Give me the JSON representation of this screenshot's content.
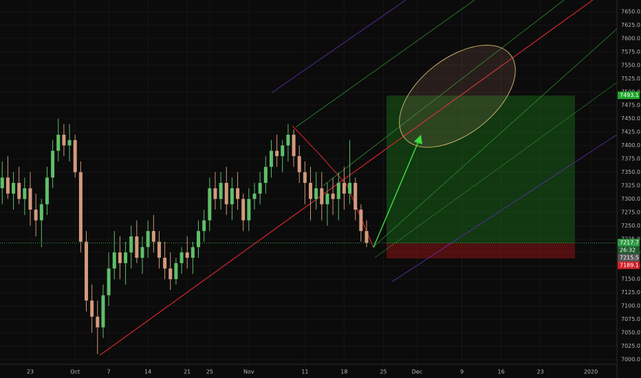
{
  "chart_data": {
    "type": "candlestick",
    "categories": [
      null,
      null,
      null,
      null,
      null,
      "23",
      null,
      null,
      null,
      null,
      null,
      null,
      null,
      "Oct",
      null,
      null,
      null,
      null,
      null,
      "7",
      null,
      null,
      null,
      null,
      null,
      null,
      "14",
      null,
      null,
      null,
      null,
      null,
      null,
      "21",
      null,
      null,
      null,
      "25",
      null,
      null,
      null,
      null,
      null,
      null,
      "Nov",
      null,
      null,
      null,
      null,
      null,
      null,
      null,
      null,
      null,
      "11",
      null,
      null,
      null,
      null,
      null,
      null,
      "18",
      null,
      null,
      null,
      null,
      null,
      null,
      "25",
      null,
      null,
      null,
      null,
      null,
      "Dec",
      null,
      null,
      null,
      null,
      null,
      null,
      null,
      "9",
      null,
      null,
      null,
      null,
      null,
      null,
      "16",
      null,
      null,
      null,
      null,
      null,
      null,
      "23",
      null,
      null,
      null,
      null,
      null,
      null,
      null,
      null,
      "2020"
    ],
    "open": [
      7320,
      7340,
      7310,
      7330,
      7300,
      7320,
      7280,
      7260,
      7290,
      7340,
      7390,
      7420,
      7400,
      7410,
      7350,
      7220,
      7110,
      7080,
      7060,
      7120,
      7170,
      7200,
      7180,
      7200,
      7230,
      7190,
      7210,
      7240,
      7220,
      7190,
      7170,
      7150,
      7180,
      7200,
      7190,
      7210,
      7240,
      7260,
      7320,
      7300,
      7330,
      7290,
      7320,
      7300,
      7260,
      7300,
      7310,
      7330,
      7360,
      7390,
      7380,
      7400,
      7420,
      7380,
      7350,
      7330,
      7300,
      7320,
      7290,
      7310,
      7300,
      7330,
      7310,
      7330,
      7280,
      7240,
      null,
      null,
      null,
      null,
      null,
      null,
      null,
      null,
      null,
      null,
      null,
      null,
      null,
      null,
      null,
      null,
      null,
      null,
      null,
      null,
      null,
      null,
      null,
      null,
      null,
      null,
      null,
      null,
      null,
      null,
      null,
      null,
      null,
      null,
      null,
      null,
      null,
      null,
      null,
      null
    ],
    "high": [
      7370,
      7380,
      7350,
      7360,
      7340,
      7350,
      7310,
      7300,
      7360,
      7410,
      7450,
      7440,
      7440,
      7420,
      7370,
      7240,
      7140,
      7110,
      7140,
      7200,
      7240,
      7230,
      7220,
      7250,
      7260,
      7230,
      7260,
      7270,
      7240,
      7220,
      7200,
      7190,
      7210,
      7230,
      7220,
      7260,
      7280,
      7340,
      7350,
      7350,
      7360,
      7340,
      7350,
      7310,
      7320,
      7330,
      7350,
      7380,
      7410,
      7420,
      7410,
      7440,
      7430,
      7400,
      7370,
      7360,
      7350,
      7350,
      7330,
      7340,
      7350,
      7360,
      7410,
      7340,
      7290,
      7260,
      null,
      null,
      null,
      null,
      null,
      null,
      null,
      null,
      null,
      null,
      null,
      null,
      null,
      null,
      null,
      null,
      null,
      null,
      null,
      null,
      null,
      null,
      null,
      null,
      null,
      null,
      null,
      null,
      null,
      null,
      null,
      null,
      null,
      null,
      null,
      null,
      null,
      null,
      null,
      null
    ],
    "low": [
      7290,
      7300,
      7280,
      7290,
      7270,
      7250,
      7230,
      7210,
      7270,
      7320,
      7370,
      7380,
      7370,
      7340,
      7200,
      7090,
      7050,
      7010,
      7040,
      7100,
      7150,
      7150,
      7140,
      7170,
      7180,
      7160,
      7190,
      7200,
      7170,
      7150,
      7130,
      7140,
      7160,
      7170,
      7160,
      7190,
      7220,
      7240,
      7280,
      7280,
      7270,
      7260,
      7280,
      7240,
      7240,
      7280,
      7290,
      7310,
      7340,
      7360,
      7350,
      7370,
      7360,
      7330,
      7290,
      7260,
      7280,
      7260,
      7250,
      7270,
      7260,
      7280,
      7290,
      7260,
      7220,
      7210,
      null,
      null,
      null,
      null,
      null,
      null,
      null,
      null,
      null,
      null,
      null,
      null,
      null,
      null,
      null,
      null,
      null,
      null,
      null,
      null,
      null,
      null,
      null,
      null,
      null,
      null,
      null,
      null,
      null,
      null,
      null,
      null,
      null,
      null,
      null,
      null,
      null,
      null,
      null,
      null
    ],
    "close": [
      7340,
      7310,
      7330,
      7300,
      7320,
      7280,
      7260,
      7290,
      7340,
      7390,
      7420,
      7400,
      7410,
      7350,
      7220,
      7110,
      7080,
      7060,
      7120,
      7170,
      7200,
      7180,
      7200,
      7230,
      7190,
      7210,
      7240,
      7220,
      7190,
      7170,
      7150,
      7180,
      7200,
      7190,
      7210,
      7240,
      7260,
      7320,
      7300,
      7330,
      7290,
      7320,
      7300,
      7260,
      7300,
      7310,
      7330,
      7360,
      7390,
      7380,
      7400,
      7420,
      7380,
      7350,
      7330,
      7300,
      7320,
      7290,
      7310,
      7300,
      7330,
      7310,
      7330,
      7280,
      7240,
      7218,
      null,
      null,
      null,
      null,
      null,
      null,
      null,
      null,
      null,
      null,
      null,
      null,
      null,
      null,
      null,
      null,
      null,
      null,
      null,
      null,
      null,
      null,
      null,
      null,
      null,
      null,
      null,
      null,
      null,
      null,
      null,
      null,
      null,
      null,
      null,
      null,
      null,
      null,
      null,
      null
    ],
    "up_color": "#5fbf6a",
    "down_color": "#d29a7c",
    "ylim": [
      7000,
      7650
    ],
    "yticks": [
      {
        "value": 7000,
        "label": "7000.0"
      },
      {
        "value": 7025,
        "label": "7025.0"
      },
      {
        "value": 7050,
        "label": "7050.0"
      },
      {
        "value": 7075,
        "label": "7075.0"
      },
      {
        "value": 7100,
        "label": "7100.0"
      },
      {
        "value": 7125,
        "label": "7125.0"
      },
      {
        "value": 7150,
        "label": "7150.0"
      },
      {
        "value": 7175,
        "label": "7175.0"
      },
      {
        "value": 7200,
        "label": "7200.0"
      },
      {
        "value": 7225,
        "label": "7225.0"
      },
      {
        "value": 7250,
        "label": "7250.0"
      },
      {
        "value": 7275,
        "label": "7275.0"
      },
      {
        "value": 7300,
        "label": "7300.0"
      },
      {
        "value": 7325,
        "label": "7325.0"
      },
      {
        "value": 7350,
        "label": "7350.0"
      },
      {
        "value": 7375,
        "label": "7375.0"
      },
      {
        "value": 7400,
        "label": "7400.0"
      },
      {
        "value": 7425,
        "label": "7425.0"
      },
      {
        "value": 7450,
        "label": "7450.0"
      },
      {
        "value": 7475,
        "label": "7475.0"
      },
      {
        "value": 7500,
        "label": "7500.0"
      },
      {
        "value": 7525,
        "label": "7525.0"
      },
      {
        "value": 7550,
        "label": "7550.0"
      },
      {
        "value": 7575,
        "label": "7575.0"
      },
      {
        "value": 7600,
        "label": "7600.0"
      },
      {
        "value": 7625,
        "label": "7625.0"
      },
      {
        "value": 7650,
        "label": "7650.0"
      }
    ],
    "grid": true,
    "price_labels": [
      {
        "value": 7493.1,
        "color": "#1fa52b"
      },
      {
        "value": 7217.7,
        "color": "#2e9a45"
      },
      {
        "value": 7215.5,
        "color": "#555555"
      },
      {
        "value": 7189.1,
        "color": "#d0212b"
      }
    ],
    "countdown": "26:32"
  }
}
